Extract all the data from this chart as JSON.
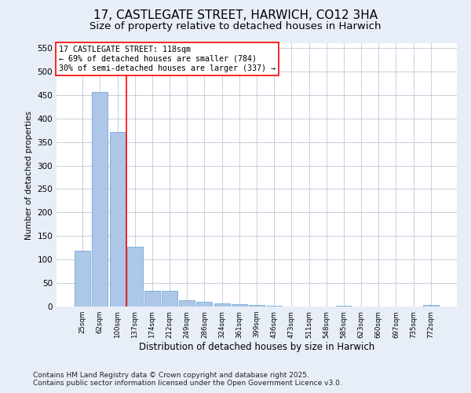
{
  "title": "17, CASTLEGATE STREET, HARWICH, CO12 3HA",
  "subtitle": "Size of property relative to detached houses in Harwich",
  "xlabel": "Distribution of detached houses by size in Harwich",
  "ylabel": "Number of detached properties",
  "categories": [
    "25sqm",
    "62sqm",
    "100sqm",
    "137sqm",
    "174sqm",
    "212sqm",
    "249sqm",
    "286sqm",
    "324sqm",
    "361sqm",
    "399sqm",
    "436sqm",
    "473sqm",
    "511sqm",
    "548sqm",
    "585sqm",
    "623sqm",
    "660sqm",
    "697sqm",
    "735sqm",
    "772sqm"
  ],
  "values": [
    119,
    456,
    371,
    127,
    33,
    33,
    13,
    10,
    7,
    5,
    3,
    1,
    0,
    0,
    0,
    1,
    0,
    0,
    0,
    0,
    3
  ],
  "bar_color": "#aec6e8",
  "bar_edge_color": "#5a9fd4",
  "vline_x": 2.5,
  "vline_color": "red",
  "annotation_text": "17 CASTLEGATE STREET: 118sqm\n← 69% of detached houses are smaller (784)\n30% of semi-detached houses are larger (337) →",
  "annotation_box_color": "white",
  "annotation_box_edge": "red",
  "ylim": [
    0,
    560
  ],
  "yticks": [
    0,
    50,
    100,
    150,
    200,
    250,
    300,
    350,
    400,
    450,
    500,
    550
  ],
  "bg_color": "#e8eef7",
  "plot_bg_color": "white",
  "footer": "Contains HM Land Registry data © Crown copyright and database right 2025.\nContains public sector information licensed under the Open Government Licence v3.0.",
  "title_fontsize": 11,
  "subtitle_fontsize": 9.5,
  "xlabel_fontsize": 8.5,
  "ylabel_fontsize": 7.5,
  "footer_fontsize": 6.5,
  "annotation_fontsize": 7.2
}
